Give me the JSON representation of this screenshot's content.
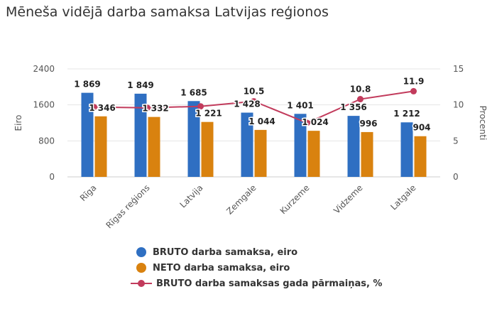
{
  "title": "Mēneša vidējā darba samaksa Latvijas reģionos",
  "colors": {
    "bruto": "#2f6fc2",
    "neto": "#d9820f",
    "change": "#c23b5c",
    "grid": "#e4e4e4",
    "text": "#333333"
  },
  "chart_data": {
    "type": "bar",
    "categories": [
      "Rīga",
      "Rīgas reģions",
      "Latvija",
      "Zemgale",
      "Kurzeme",
      "Vidzeme",
      "Latgale"
    ],
    "series": [
      {
        "name": "BRUTO darba samaksa, eiro",
        "type": "bar",
        "axis": "left",
        "values": [
          1869,
          1849,
          1685,
          1428,
          1401,
          1356,
          1212
        ],
        "labels": [
          "1 869",
          "1 849",
          "1 685",
          "1 428",
          "1 401",
          "1 356",
          "1 212"
        ]
      },
      {
        "name": "NETO darba samaksa, eiro",
        "type": "bar",
        "axis": "left",
        "values": [
          1346,
          1332,
          1221,
          1044,
          1024,
          996,
          904
        ],
        "labels": [
          "1 346",
          "1 332",
          "1 221",
          "1 044",
          "1 024",
          "996",
          "904"
        ]
      },
      {
        "name": "BRUTO darba samaksas gada pārmaiņas, %",
        "type": "line",
        "axis": "right",
        "values": [
          9.7,
          9.6,
          9.8,
          10.5,
          7.5,
          10.8,
          11.9
        ],
        "labels": [
          "",
          "",
          "",
          "10.5",
          "",
          "10.8",
          "11.9"
        ]
      }
    ],
    "ylabel": "Eiro",
    "y2label": "Procenti",
    "ylim": [
      0,
      2400
    ],
    "y2lim": [
      0,
      15
    ],
    "yticks": [
      "0",
      "800",
      "1600",
      "2400"
    ],
    "y2ticks": [
      "0",
      "5",
      "10",
      "15"
    ],
    "grid": true,
    "legend_position": "bottom"
  }
}
